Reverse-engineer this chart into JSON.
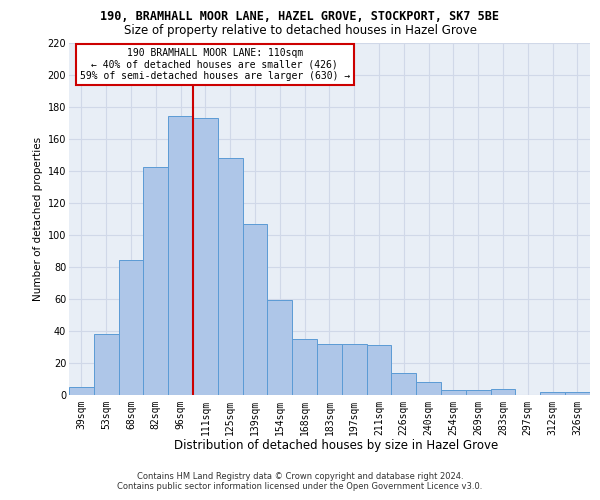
{
  "title_line1": "190, BRAMHALL MOOR LANE, HAZEL GROVE, STOCKPORT, SK7 5BE",
  "title_line2": "Size of property relative to detached houses in Hazel Grove",
  "xlabel": "Distribution of detached houses by size in Hazel Grove",
  "ylabel": "Number of detached properties",
  "footer_line1": "Contains HM Land Registry data © Crown copyright and database right 2024.",
  "footer_line2": "Contains public sector information licensed under the Open Government Licence v3.0.",
  "categories": [
    "39sqm",
    "53sqm",
    "68sqm",
    "82sqm",
    "96sqm",
    "111sqm",
    "125sqm",
    "139sqm",
    "154sqm",
    "168sqm",
    "183sqm",
    "197sqm",
    "211sqm",
    "226sqm",
    "240sqm",
    "254sqm",
    "269sqm",
    "283sqm",
    "297sqm",
    "312sqm",
    "326sqm"
  ],
  "values": [
    5,
    38,
    84,
    142,
    174,
    173,
    148,
    107,
    59,
    35,
    32,
    32,
    31,
    14,
    8,
    3,
    3,
    4,
    0,
    2,
    2
  ],
  "bar_color": "#aec6e8",
  "bar_edge_color": "#5b9bd5",
  "grid_color": "#d0d8e8",
  "background_color": "#e8eef6",
  "vline_color": "#cc0000",
  "annotation_text": "190 BRAMHALL MOOR LANE: 110sqm\n← 40% of detached houses are smaller (426)\n59% of semi-detached houses are larger (630) →",
  "annotation_box_facecolor": "#ffffff",
  "annotation_border_color": "#cc0000",
  "ylim": [
    0,
    220
  ],
  "yticks": [
    0,
    20,
    40,
    60,
    80,
    100,
    120,
    140,
    160,
    180,
    200,
    220
  ],
  "property_bar_index": 5,
  "title1_fontsize": 8.5,
  "title2_fontsize": 8.5,
  "ylabel_fontsize": 7.5,
  "xlabel_fontsize": 8.5,
  "tick_fontsize": 7,
  "annotation_fontsize": 7,
  "footer_fontsize": 6
}
